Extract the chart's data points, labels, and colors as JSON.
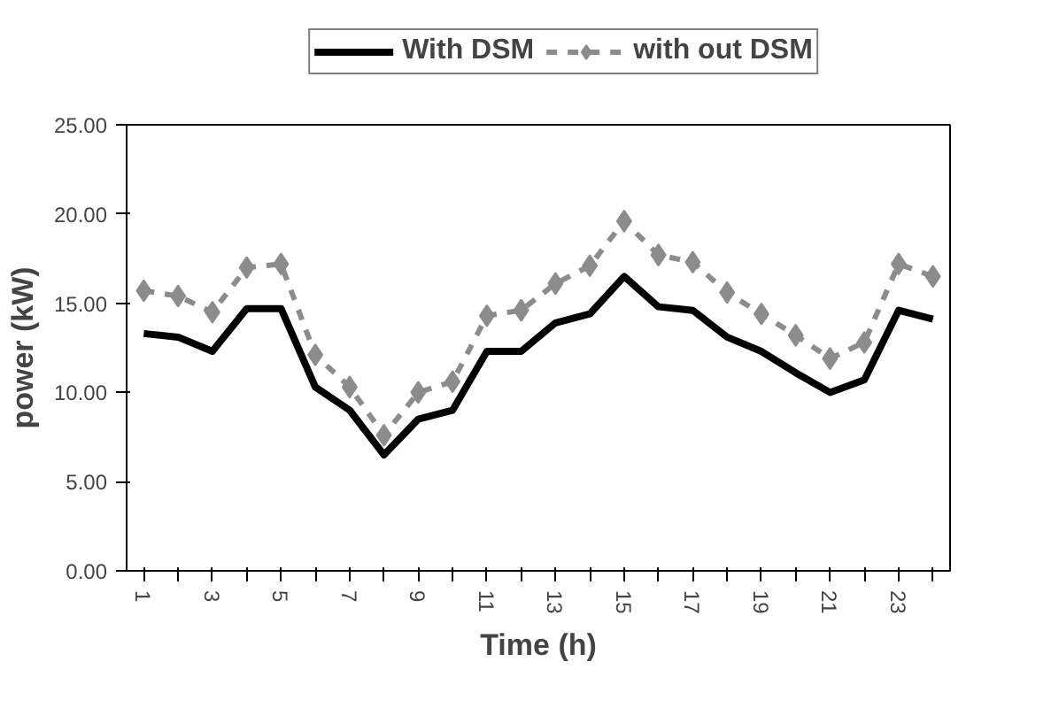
{
  "chart_data": {
    "type": "line",
    "xlabel": "Time (h)",
    "ylabel": "power (kW)",
    "x": [
      1,
      2,
      3,
      4,
      5,
      6,
      7,
      8,
      9,
      10,
      11,
      12,
      13,
      14,
      15,
      16,
      17,
      18,
      19,
      20,
      21,
      22,
      23,
      24
    ],
    "series": [
      {
        "name": "With DSM",
        "color": "#000000",
        "line_style": "solid",
        "marker": "none",
        "values": [
          13.3,
          13.1,
          12.3,
          14.7,
          14.7,
          10.3,
          9.0,
          6.5,
          8.5,
          9.0,
          12.3,
          12.3,
          13.9,
          14.4,
          16.5,
          14.8,
          14.6,
          13.1,
          12.3,
          11.1,
          10.0,
          10.7,
          14.6,
          14.1
        ]
      },
      {
        "name": "with out DSM",
        "color": "#8c8c8c",
        "line_style": "dashed",
        "marker": "diamond",
        "values": [
          15.7,
          15.4,
          14.5,
          17.0,
          17.2,
          12.1,
          10.3,
          7.6,
          10.0,
          10.6,
          14.3,
          14.6,
          16.1,
          17.1,
          19.6,
          17.7,
          17.3,
          15.6,
          14.4,
          13.2,
          11.9,
          12.8,
          17.2,
          16.5
        ]
      }
    ],
    "xlim": [
      0.5,
      24.5
    ],
    "xticks": [
      1,
      {
        "value": 2,
        "label": null
      },
      3,
      {
        "value": 4,
        "label": null
      },
      5,
      {
        "value": 6,
        "label": null
      },
      7,
      {
        "value": 8,
        "label": null
      },
      9,
      {
        "value": 10,
        "label": null
      },
      11,
      {
        "value": 12,
        "label": null
      },
      13,
      {
        "value": 14,
        "label": null
      },
      15,
      {
        "value": 16,
        "label": null
      },
      17,
      {
        "value": 18,
        "label": null
      },
      19,
      {
        "value": 20,
        "label": null
      },
      21,
      {
        "value": 22,
        "label": null
      },
      23,
      {
        "value": 24,
        "label": null
      }
    ],
    "ylim": [
      0,
      25
    ],
    "yticks": [
      {
        "value": 0,
        "label": "0.00"
      },
      {
        "value": 5,
        "label": "5.00"
      },
      {
        "value": 10,
        "label": "10.00"
      },
      {
        "value": 15,
        "label": "15.00"
      },
      {
        "value": 20,
        "label": "20.00"
      },
      {
        "value": 25,
        "label": "25.00"
      }
    ],
    "grid": false,
    "legend": "top"
  }
}
